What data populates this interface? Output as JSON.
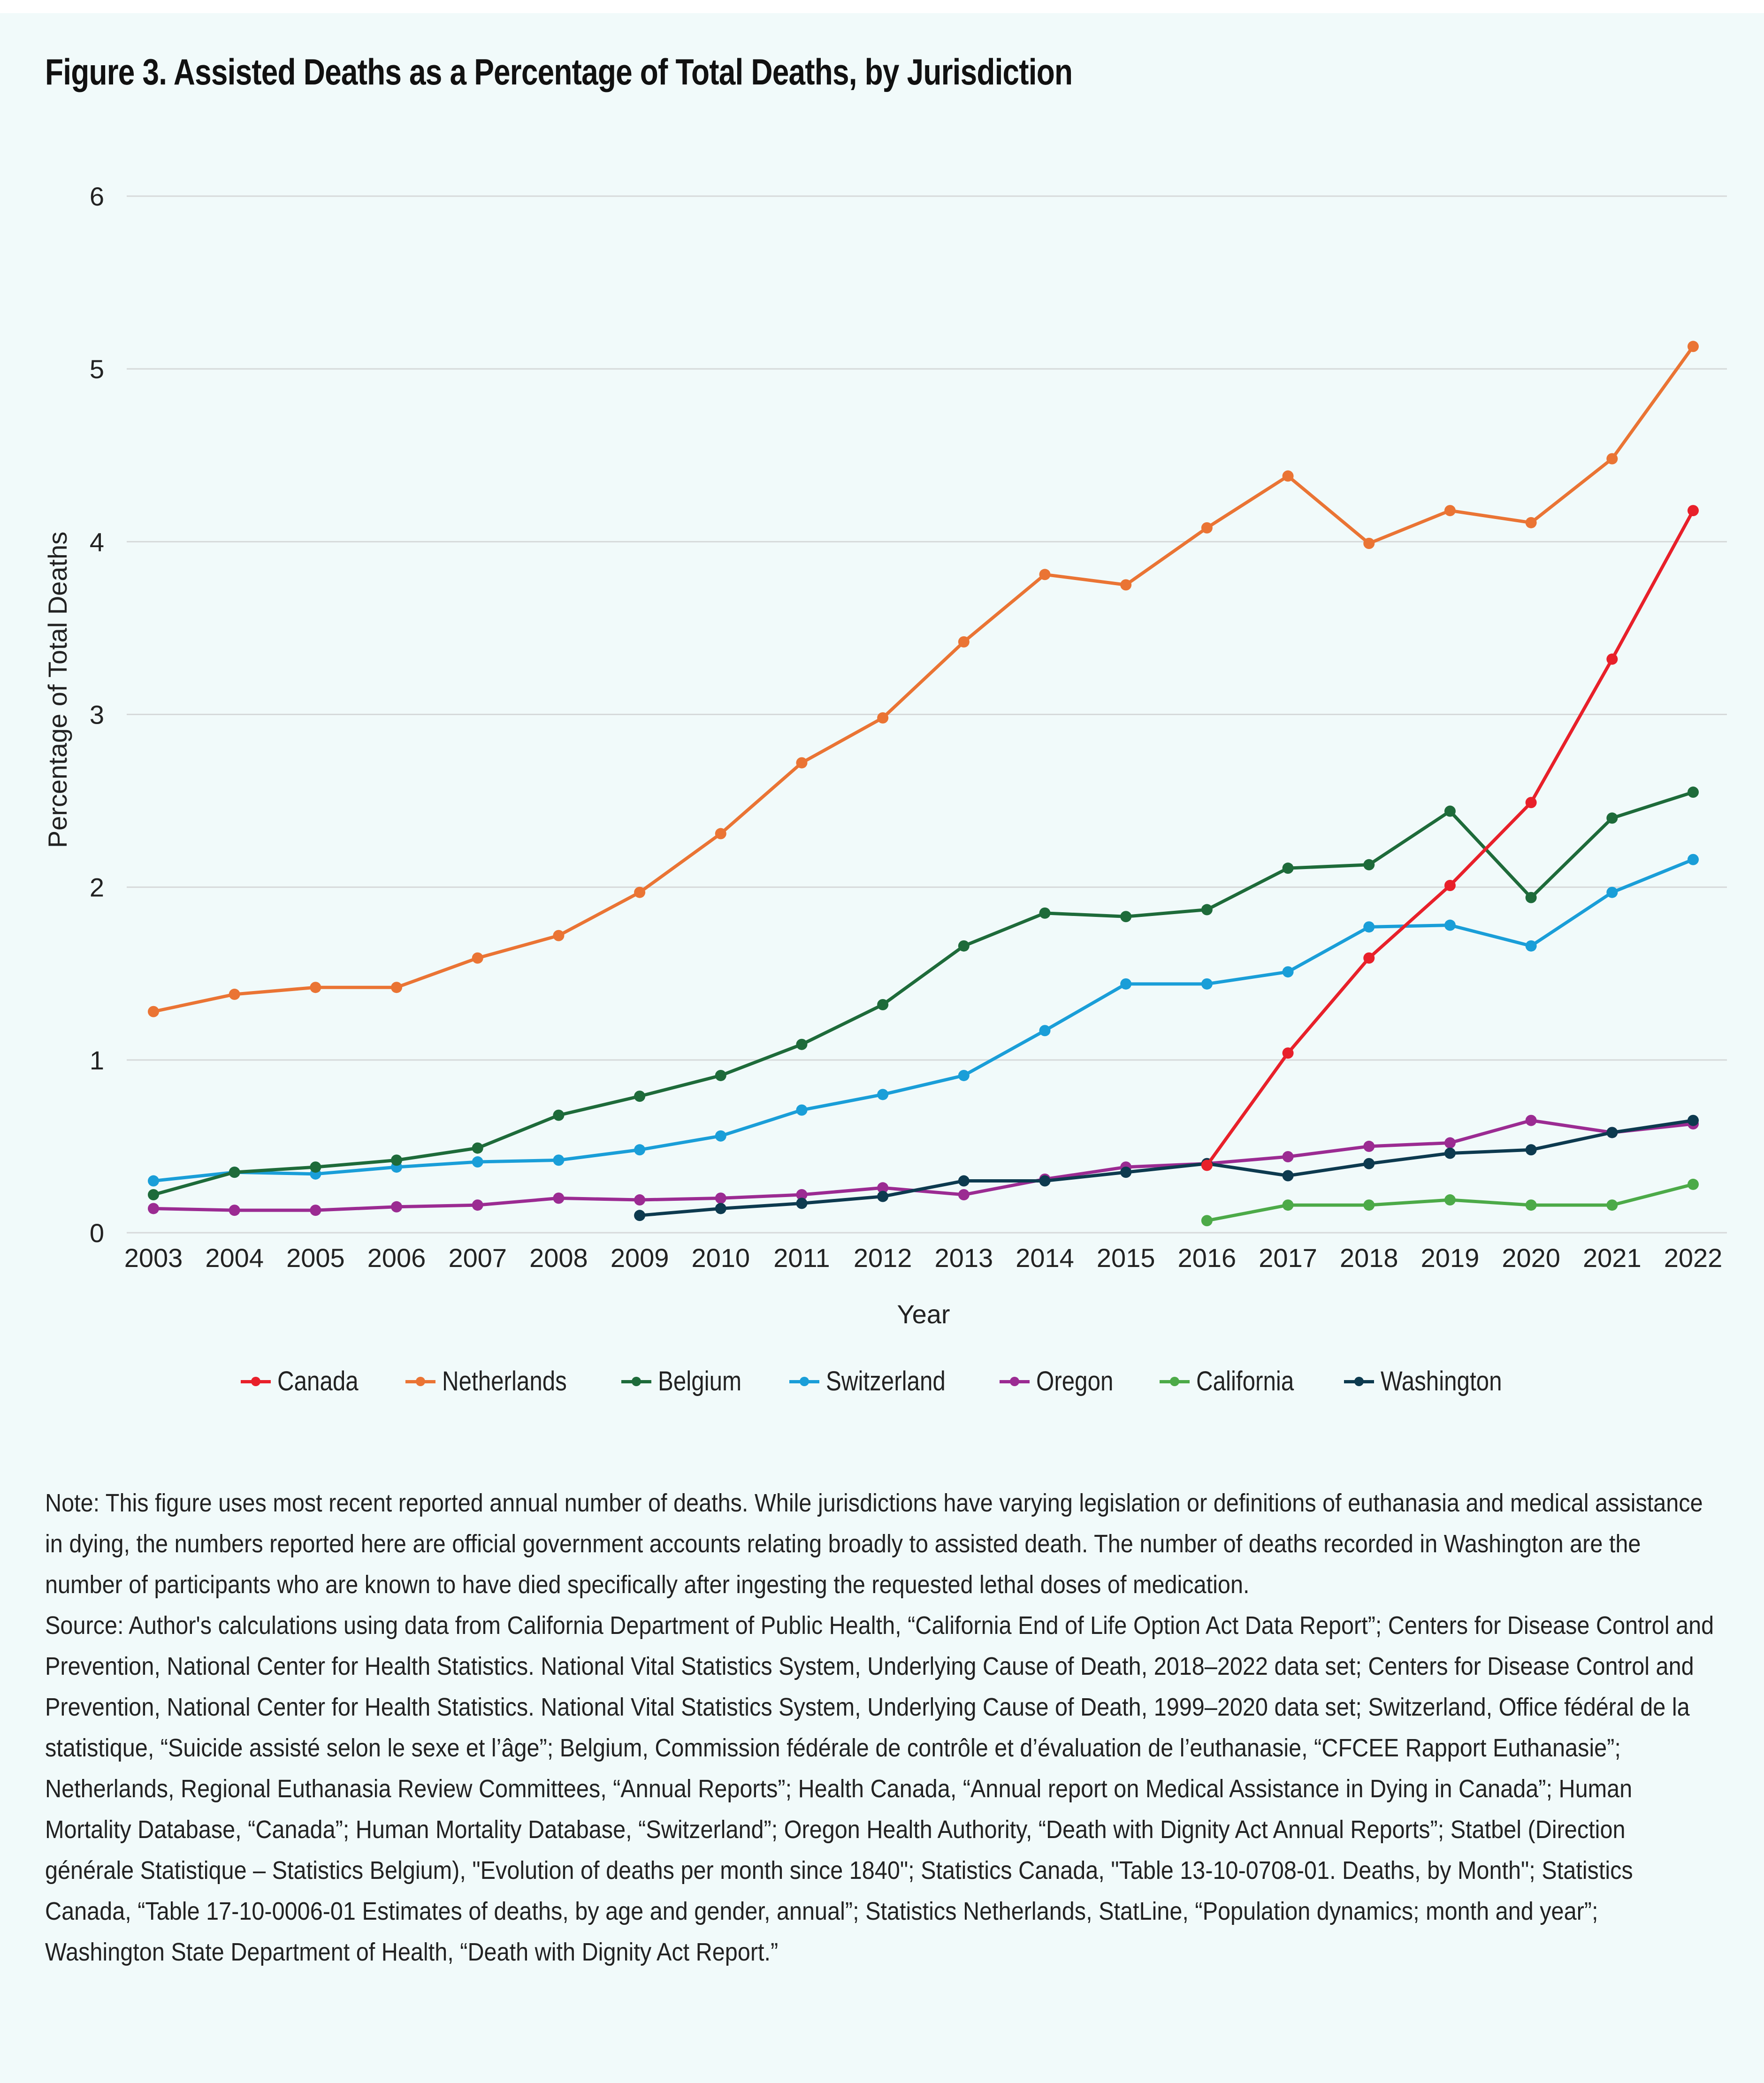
{
  "title": "Figure 3. Assisted Deaths as a Percentage of Total Deaths, by Jurisdiction",
  "chart_data": {
    "type": "line",
    "title": "Figure 3. Assisted Deaths as a Percentage of Total Deaths, by Jurisdiction",
    "xlabel": "Year",
    "ylabel": "Percentage of Total Deaths",
    "ylim": [
      0,
      6
    ],
    "yticks": [
      "0",
      "1",
      "2",
      "3",
      "4",
      "5",
      "6"
    ],
    "grid": true,
    "legend_position": "bottom-center",
    "categories": [
      "2003",
      "2004",
      "2005",
      "2006",
      "2007",
      "2008",
      "2009",
      "2010",
      "2011",
      "2012",
      "2013",
      "2014",
      "2015",
      "2016",
      "2017",
      "2018",
      "2019",
      "2020",
      "2021",
      "2022"
    ],
    "series": [
      {
        "name": "Canada",
        "color": "#e8202a",
        "values": [
          null,
          null,
          null,
          null,
          null,
          null,
          null,
          null,
          null,
          null,
          null,
          null,
          null,
          0.39,
          1.04,
          1.59,
          2.01,
          2.49,
          3.32,
          4.18
        ]
      },
      {
        "name": "Netherlands",
        "color": "#ea7434",
        "values": [
          1.28,
          1.38,
          1.42,
          1.42,
          1.59,
          1.72,
          1.97,
          2.31,
          2.72,
          2.98,
          3.42,
          3.81,
          3.75,
          4.08,
          4.38,
          3.99,
          4.18,
          4.11,
          4.48,
          5.13
        ]
      },
      {
        "name": "Belgium",
        "color": "#1e6b3a",
        "values": [
          0.22,
          0.35,
          0.38,
          0.42,
          0.49,
          0.68,
          0.79,
          0.91,
          1.09,
          1.32,
          1.66,
          1.85,
          1.83,
          1.87,
          2.11,
          2.13,
          2.44,
          1.94,
          2.4,
          2.55
        ]
      },
      {
        "name": "Switzerland",
        "color": "#1a9ed8",
        "values": [
          0.3,
          0.35,
          0.34,
          0.38,
          0.41,
          0.42,
          0.48,
          0.56,
          0.71,
          0.8,
          0.91,
          1.17,
          1.44,
          1.44,
          1.51,
          1.77,
          1.78,
          1.66,
          1.97,
          2.16
        ]
      },
      {
        "name": "Oregon",
        "color": "#9b2b92",
        "values": [
          0.14,
          0.13,
          0.13,
          0.15,
          0.16,
          0.2,
          0.19,
          0.2,
          0.22,
          0.26,
          0.22,
          0.31,
          0.38,
          0.4,
          0.44,
          0.5,
          0.52,
          0.65,
          0.58,
          0.63
        ]
      },
      {
        "name": "California",
        "color": "#4caa48",
        "values": [
          null,
          null,
          null,
          null,
          null,
          null,
          null,
          null,
          null,
          null,
          null,
          null,
          null,
          0.07,
          0.16,
          0.16,
          0.19,
          0.16,
          0.16,
          0.28
        ]
      },
      {
        "name": "Washington",
        "color": "#0d3a4f",
        "values": [
          null,
          null,
          null,
          null,
          null,
          null,
          0.1,
          0.14,
          0.17,
          0.21,
          0.3,
          0.3,
          0.35,
          0.4,
          0.33,
          0.4,
          0.46,
          0.48,
          0.58,
          0.65
        ]
      }
    ]
  },
  "notes": {
    "note": "Note: This figure uses most recent reported annual number of deaths. While jurisdictions have varying legislation or definitions of euthanasia and medical assistance in dying, the numbers reported here are official government accounts relating broadly to assisted death. The number of deaths recorded in Washington are the number of participants who are known to have died specifically after ingesting the requested lethal doses of medication.",
    "source": "Source: Author's calculations using data from California Department of Public Health, “California End of Life Option Act Data Report”; Centers for Disease Control and Prevention, National Center for Health Statistics. National Vital Statistics System, Underlying Cause of Death, 2018–2022 data set; Centers for Disease Control and Prevention, National Center for Health Statistics. National Vital Statistics System, Underlying Cause of Death, 1999–2020 data set; Switzerland, Office fédéral de la statistique, “Suicide assisté selon le sexe et l’âge”; Belgium, Commission fédérale de contrôle et d’évaluation de l’euthanasie, “CFCEE Rapport Euthanasie”; Netherlands, Regional Euthanasia Review Committees, “Annual Reports”; Health Canada, “Annual report on Medical Assistance in Dying in Canada”; Human Mortality Database, “Canada”; Human Mortality Database, “Switzerland”; Oregon Health Authority, “Death with Dignity Act Annual Reports”; Statbel (Direction générale Statistique – Statistics Belgium), \"Evolution of deaths per month since 1840\"; Statistics Canada, \"Table 13-10-0708-01. Deaths, by Month\"; Statistics Canada, “Table 17-10-0006-01 Estimates of deaths, by age and gender, annual”; Statistics Netherlands, StatLine, “Population dynamics; month and year”; Washington State Department of Health, “Death with Dignity Act Report.”"
  }
}
